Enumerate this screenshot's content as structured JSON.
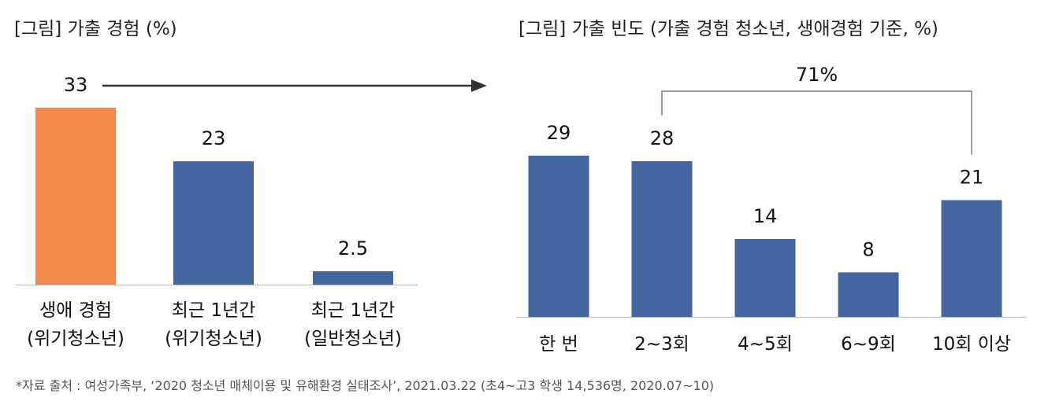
{
  "source_note": "*자료 출처 : 여성가족부, ‘2020 청소년 매체이용 및 유해환경 실태조사’, 2021.03.22 (초4~고3 학생 14,536명, 2020.07~10)",
  "colors": {
    "highlight": "#F0894A",
    "bar": "#44659F",
    "axis": "#BFBFBF",
    "bracket": "#7F7F7F",
    "arrow": "#333333"
  },
  "chart_data": [
    {
      "type": "bar",
      "title": "[그림] 가출 경험 (%)",
      "categories": [
        [
          "생애 경험",
          "(위기청소년)"
        ],
        [
          "최근 1년간",
          "(위기청소년)"
        ],
        [
          "최근 1년간",
          "(일반청소년)"
        ]
      ],
      "values": [
        33,
        23,
        2.5
      ],
      "value_labels": [
        "33",
        "23",
        "2.5"
      ],
      "highlight_index": 0,
      "ylim": [
        0,
        36
      ],
      "grid": false
    },
    {
      "type": "bar",
      "title": "[그림] 가출 빈도 (가출 경험 청소년, 생애경험 기준,  %)",
      "categories": [
        [
          "한 번"
        ],
        [
          "2~3회"
        ],
        [
          "4~5회"
        ],
        [
          "6~9회"
        ],
        [
          "10회 이상"
        ]
      ],
      "values": [
        29,
        28,
        14,
        8,
        21
      ],
      "value_labels": [
        "29",
        "28",
        "14",
        "8",
        "21"
      ],
      "bracket": {
        "from_category": "2~3회",
        "to_category": "10회 이상",
        "label": "71%"
      },
      "ylim": [
        0,
        36
      ],
      "grid": false
    }
  ]
}
